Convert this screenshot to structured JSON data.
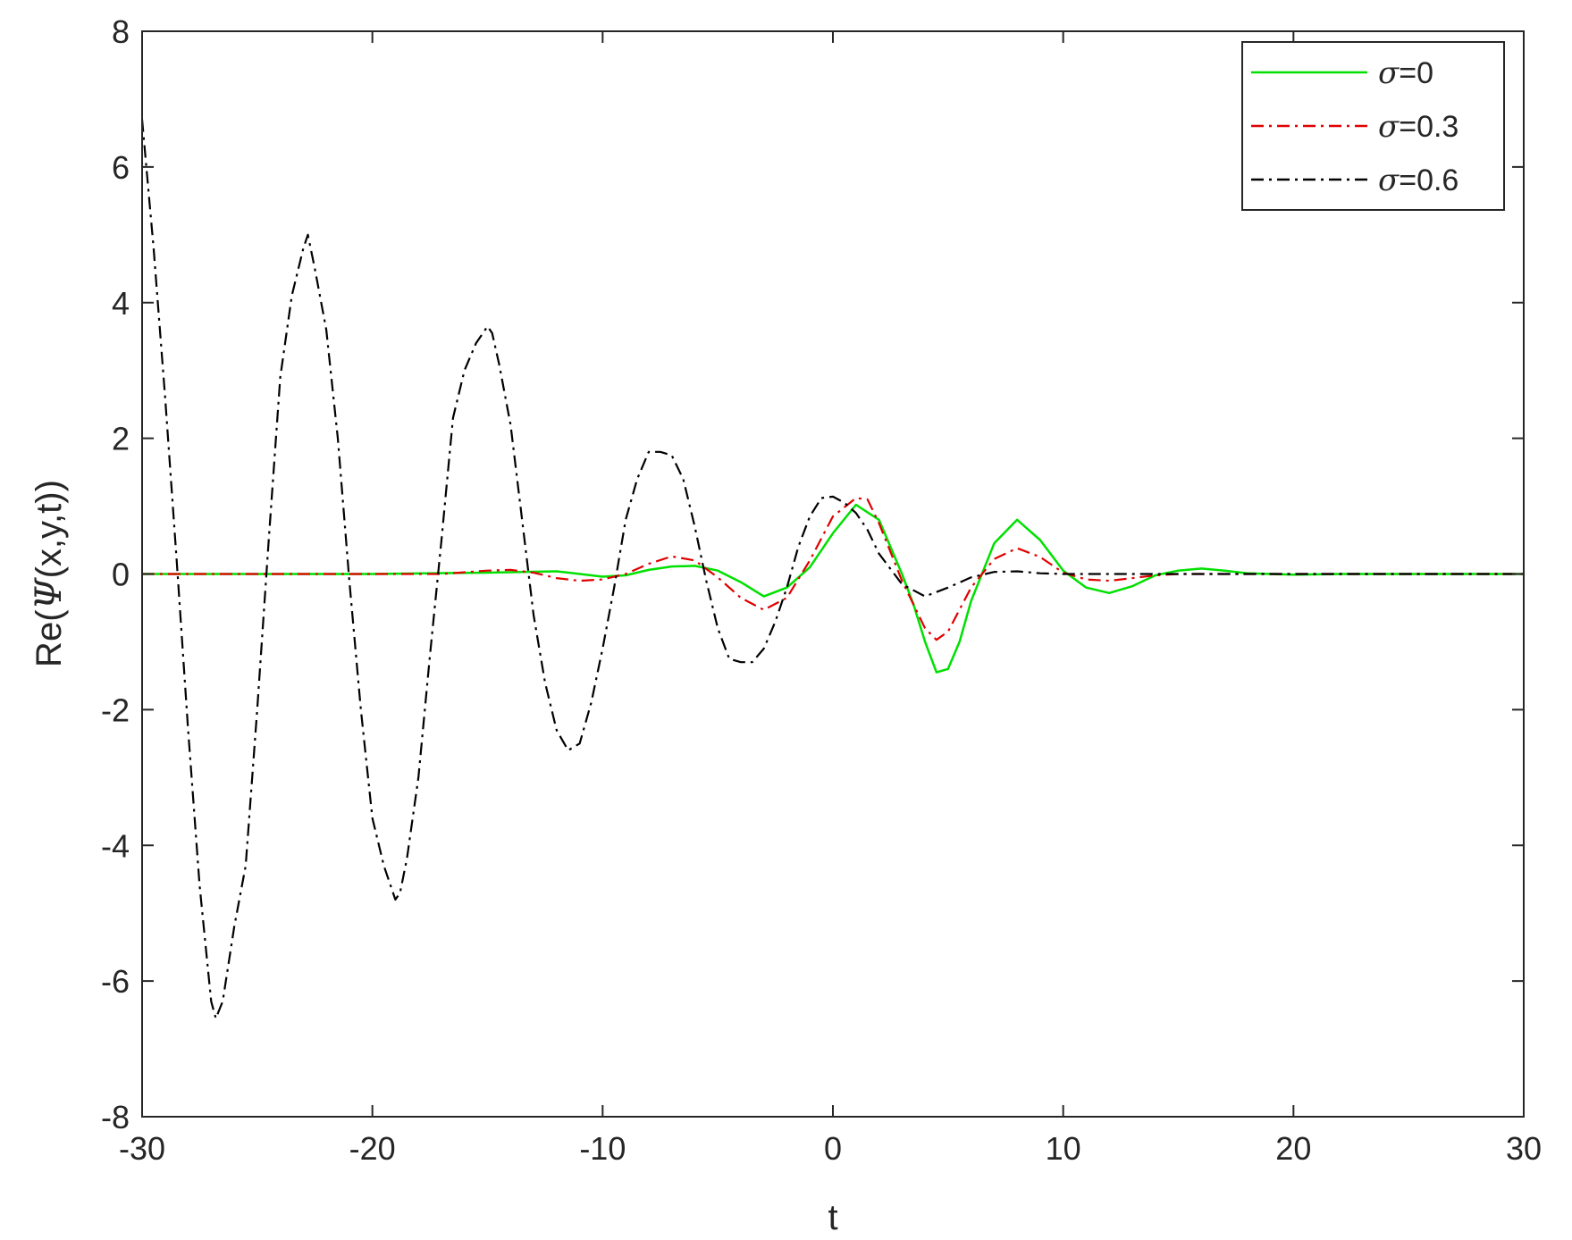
{
  "chart_data": {
    "type": "line",
    "xlabel": "t",
    "ylabel_prefix": "Re(",
    "ylabel_symbol": "Ψ",
    "ylabel_suffix": "(x,y,t))",
    "xlim": [
      -30,
      30
    ],
    "ylim": [
      -8,
      8
    ],
    "xticks": [
      -30,
      -20,
      -10,
      0,
      10,
      20,
      30
    ],
    "yticks": [
      -8,
      -6,
      -4,
      -2,
      0,
      2,
      4,
      6,
      8
    ],
    "grid": false,
    "legend_position": "top-right",
    "series": [
      {
        "legend_symbol": "σ",
        "legend_value": "=0",
        "color": "#00e000",
        "style": "solid",
        "x": [
          -30,
          -25,
          -20,
          -15,
          -12,
          -10,
          -9,
          -8,
          -7,
          -6,
          -5,
          -4,
          -3,
          -2,
          -1,
          0,
          1,
          2,
          3,
          3.5,
          4,
          4.5,
          5,
          5.5,
          6,
          7,
          8,
          9,
          10,
          11,
          12,
          13,
          14,
          15,
          16,
          17,
          18,
          20,
          22,
          25,
          30
        ],
        "y": [
          0,
          0,
          0,
          0.02,
          0.04,
          -0.04,
          -0.02,
          0.06,
          0.11,
          0.12,
          0.05,
          -0.12,
          -0.33,
          -0.2,
          0.1,
          0.6,
          1.02,
          0.8,
          0,
          -0.45,
          -1.0,
          -1.45,
          -1.4,
          -1.0,
          -0.4,
          0.45,
          0.8,
          0.5,
          0.05,
          -0.2,
          -0.28,
          -0.18,
          -0.02,
          0.05,
          0.08,
          0.05,
          0.01,
          -0.01,
          0,
          0,
          0
        ]
      },
      {
        "legend_symbol": "σ",
        "legend_value": "=0.3",
        "color": "#e00000",
        "style": "dashdot",
        "x": [
          -30,
          -25,
          -20,
          -17,
          -15,
          -14,
          -13,
          -12,
          -11,
          -10,
          -9,
          -8,
          -7,
          -6,
          -5,
          -4,
          -3,
          -2,
          -1,
          0,
          1,
          1.5,
          2,
          3,
          4,
          4.5,
          5,
          6,
          7,
          8,
          9,
          10,
          11,
          12,
          13,
          14,
          15,
          17,
          20,
          25,
          30
        ],
        "y": [
          0,
          0,
          0,
          0,
          0.05,
          0.06,
          0.02,
          -0.06,
          -0.1,
          -0.08,
          0,
          0.15,
          0.26,
          0.2,
          -0.05,
          -0.35,
          -0.53,
          -0.35,
          0.2,
          0.85,
          1.12,
          1.1,
          0.75,
          -0.1,
          -0.8,
          -0.97,
          -0.85,
          -0.2,
          0.22,
          0.38,
          0.25,
          0.02,
          -0.08,
          -0.1,
          -0.06,
          -0.02,
          0,
          0,
          0,
          0,
          0
        ]
      },
      {
        "legend_symbol": "σ",
        "legend_value": "=0.6",
        "color": "#000000",
        "style": "dashdot",
        "x": [
          -30,
          -29.5,
          -29,
          -28.5,
          -28,
          -27.5,
          -27,
          -26.8,
          -26.5,
          -26,
          -25.5,
          -25,
          -24.5,
          -24,
          -23.5,
          -23,
          -22.8,
          -22.5,
          -22,
          -21.5,
          -21,
          -20.5,
          -20,
          -19.5,
          -19,
          -18.8,
          -18.5,
          -18,
          -17.5,
          -17,
          -16.5,
          -16,
          -15.5,
          -15,
          -14.8,
          -14.5,
          -14,
          -13.5,
          -13,
          -12.5,
          -12,
          -11.5,
          -11,
          -10.5,
          -10,
          -9.5,
          -9,
          -8.5,
          -8,
          -7.5,
          -7,
          -6.5,
          -6,
          -5.5,
          -5,
          -4.5,
          -4,
          -3.5,
          -3,
          -2.5,
          -2,
          -1.5,
          -1,
          -0.5,
          0,
          0.5,
          1,
          1.5,
          2,
          3,
          4,
          5,
          6,
          7,
          8,
          9,
          10,
          12,
          15,
          20,
          25,
          30
        ],
        "y": [
          6.7,
          4.8,
          2.6,
          0.2,
          -2.3,
          -4.6,
          -6.3,
          -6.55,
          -6.3,
          -5.2,
          -4.3,
          -2.0,
          0.5,
          2.9,
          4.1,
          4.8,
          5.0,
          4.5,
          3.6,
          2.0,
          -0.1,
          -2.0,
          -3.6,
          -4.3,
          -4.8,
          -4.7,
          -4.2,
          -3.0,
          -1.2,
          0.5,
          2.3,
          3.0,
          3.4,
          3.65,
          3.55,
          3.1,
          2.2,
          0.8,
          -0.6,
          -1.6,
          -2.3,
          -2.6,
          -2.5,
          -1.9,
          -1.1,
          -0.2,
          0.8,
          1.4,
          1.8,
          1.8,
          1.75,
          1.4,
          0.7,
          -0.1,
          -0.8,
          -1.25,
          -1.3,
          -1.3,
          -1.1,
          -0.7,
          -0.2,
          0.4,
          0.85,
          1.12,
          1.14,
          1.05,
          0.9,
          0.65,
          0.3,
          -0.15,
          -0.33,
          -0.2,
          -0.05,
          0.03,
          0.04,
          0.01,
          0,
          0,
          0,
          0,
          0,
          0
        ]
      }
    ]
  }
}
